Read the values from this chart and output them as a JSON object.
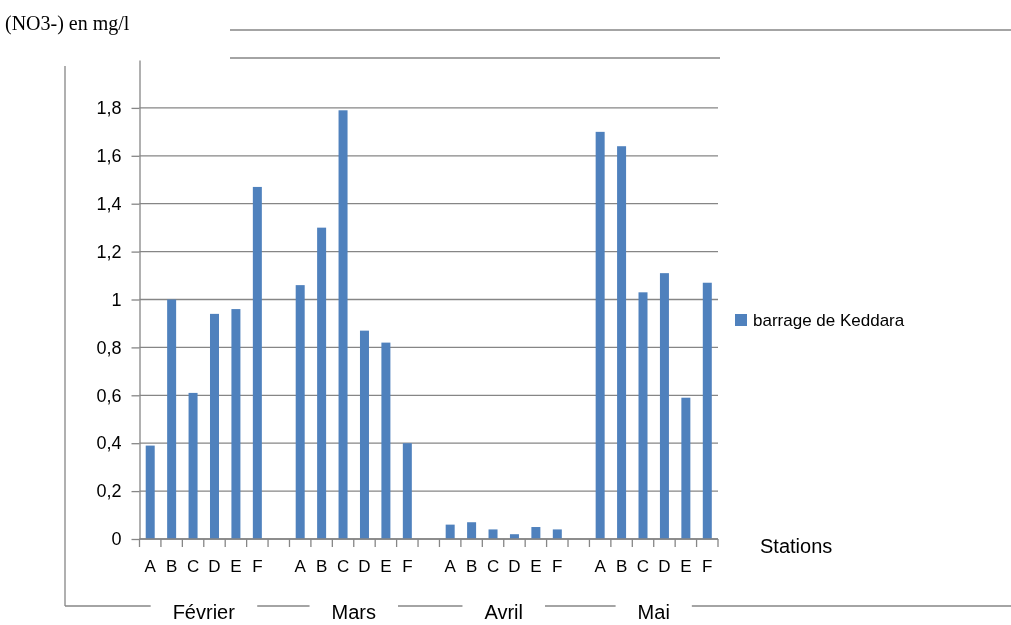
{
  "chart_data": {
    "type": "bar",
    "ylabel": "(NO3-) en mg/l",
    "xlabel": "Stations",
    "categories": [
      "A",
      "B",
      "C",
      "D",
      "E",
      "F",
      null,
      "A",
      "B",
      "C",
      "D",
      "E",
      "F",
      null,
      "A",
      "B",
      "C",
      "D",
      "E",
      "F",
      null,
      "A",
      "B",
      "C",
      "D",
      "E",
      "F"
    ],
    "series": [
      {
        "name": "barrage de Keddara",
        "color": "#4f81bd",
        "values": [
          0.39,
          1.0,
          0.61,
          0.94,
          0.96,
          1.47,
          null,
          1.06,
          1.3,
          1.79,
          0.87,
          0.82,
          0.4,
          null,
          0.06,
          0.07,
          0.04,
          0.02,
          0.05,
          0.04,
          null,
          1.7,
          1.64,
          1.03,
          1.11,
          0.59,
          1.07
        ]
      }
    ],
    "annotations": [
      "Février",
      "Mars",
      "Avril",
      "Mai"
    ],
    "ylim": [
      0,
      2
    ],
    "yticks": [
      {
        "value": 0,
        "label": "0"
      },
      {
        "value": 0.2,
        "label": "0,2"
      },
      {
        "value": 0.4,
        "label": "0,4"
      },
      {
        "value": 0.6,
        "label": "0,6"
      },
      {
        "value": 0.8,
        "label": "0,8"
      },
      {
        "value": 1,
        "label": "1"
      },
      {
        "value": 1.2,
        "label": "1,2"
      },
      {
        "value": 1.4,
        "label": "1,4"
      },
      {
        "value": 1.6,
        "label": "1,6"
      },
      {
        "value": 1.8,
        "label": "1,8"
      }
    ],
    "grid": "y",
    "legend": "right"
  }
}
